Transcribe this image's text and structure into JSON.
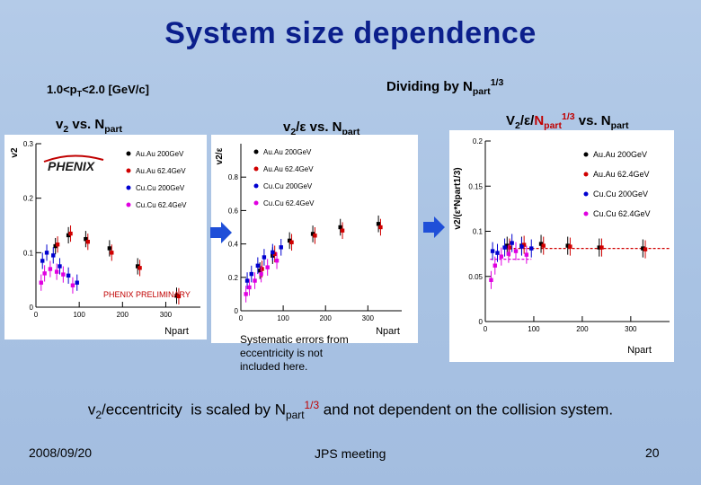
{
  "slide": {
    "title": "System size dependence",
    "pt_range": "1.0<pT<2.0 [GeV/c]",
    "dividing_label": "Dividing by Npart1/3",
    "bottom_statement": "v2/eccentricity  is scaled by Npart1/3 and not dependent on the collision system.",
    "footer_date": "2008/09/20",
    "footer_meeting": "JPS meeting",
    "footer_page": "20",
    "systematic_note_1": "Systematic errors from",
    "systematic_note_2": "eccentricity is not",
    "systematic_note_3": "included here."
  },
  "panel_titles": {
    "p1_a": "v",
    "p1_b": "2",
    "p1_c": " vs. N",
    "p1_d": "part",
    "p2_a": "v",
    "p2_b": "2",
    "p2_c": "/ε vs. N",
    "p2_d": "part",
    "p3_a": "V",
    "p3_b": "2",
    "p3_c": "/ε/",
    "p3_d": "N",
    "p3_e": "part",
    "p3_f": "1/3",
    "p3_g": " vs. N",
    "p3_h": "part"
  },
  "colors": {
    "auau200": "#000000",
    "auau62": "#d00000",
    "cucu200": "#0000d0",
    "cucu62": "#e000e0",
    "title": "#0b1f8c",
    "arrow": "#1f4fd8"
  },
  "chart_data": [
    {
      "type": "scatter",
      "ylabel": "v2",
      "xlabel": "Npart",
      "xlim": [
        0,
        380
      ],
      "ylim": [
        0,
        0.3
      ],
      "yticks": [
        "0",
        "0.1",
        "0.2",
        "0.3"
      ],
      "xticks": [
        "0",
        "100",
        "200",
        "300"
      ],
      "logo": "PHENIX",
      "annotation": "PHENIX PRELIMINARY",
      "legend": [
        "Au.Au 200GeV",
        "Au.Au 62.4GeV",
        "Cu.Cu 200GeV",
        "Cu.Cu 62.4GeV"
      ],
      "series": [
        {
          "name": "Au.Au 200GeV",
          "x": [
            45,
            75,
            115,
            170,
            235,
            325
          ],
          "y": [
            0.112,
            0.132,
            0.125,
            0.108,
            0.075,
            0.021
          ]
        },
        {
          "name": "Au.Au 62.4GeV",
          "x": [
            50,
            80,
            120,
            175,
            240,
            330
          ],
          "y": [
            0.115,
            0.135,
            0.12,
            0.1,
            0.072,
            0.02
          ]
        },
        {
          "name": "Cu.Cu 200GeV",
          "x": [
            15,
            25,
            40,
            55,
            75,
            95
          ],
          "y": [
            0.085,
            0.1,
            0.095,
            0.075,
            0.058,
            0.045
          ]
        },
        {
          "name": "Cu.Cu 62.4GeV",
          "x": [
            12,
            20,
            33,
            48,
            63,
            85
          ],
          "y": [
            0.045,
            0.062,
            0.07,
            0.065,
            0.06,
            0.04
          ]
        }
      ]
    },
    {
      "type": "scatter",
      "ylabel": "v2/ε",
      "xlabel": "Npart",
      "xlim": [
        0,
        380
      ],
      "ylim": [
        0,
        1.0
      ],
      "yticks": [
        "0",
        "0.2",
        "0.4",
        "0.6",
        "0.8"
      ],
      "xticks": [
        "0",
        "100",
        "200",
        "300"
      ],
      "legend": [
        "Au.Au 200GeV",
        "Au.Au 62.4GeV",
        "Cu.Cu 200GeV",
        "Cu.Cu 62.4GeV"
      ],
      "series": [
        {
          "name": "Au.Au 200GeV",
          "x": [
            45,
            75,
            115,
            170,
            235,
            325
          ],
          "y": [
            0.24,
            0.33,
            0.42,
            0.46,
            0.5,
            0.52
          ]
        },
        {
          "name": "Au.Au 62.4GeV",
          "x": [
            50,
            80,
            120,
            175,
            240,
            330
          ],
          "y": [
            0.25,
            0.34,
            0.41,
            0.45,
            0.48,
            0.5
          ]
        },
        {
          "name": "Cu.Cu 200GeV",
          "x": [
            15,
            25,
            40,
            55,
            75,
            95
          ],
          "y": [
            0.18,
            0.22,
            0.27,
            0.32,
            0.35,
            0.38
          ]
        },
        {
          "name": "Cu.Cu 62.4GeV",
          "x": [
            12,
            20,
            33,
            48,
            63,
            85
          ],
          "y": [
            0.1,
            0.14,
            0.18,
            0.22,
            0.26,
            0.3
          ]
        }
      ]
    },
    {
      "type": "scatter",
      "ylabel": "v2/(ε*Npart1/3)",
      "xlabel": "Npart",
      "xlim": [
        0,
        380
      ],
      "ylim": [
        0,
        0.2
      ],
      "yticks": [
        "0",
        "0.05",
        "0.1",
        "0.15",
        "0.2"
      ],
      "xticks": [
        "0",
        "100",
        "200",
        "300"
      ],
      "legend": [
        "Au.Au 200GeV",
        "Au.Au 62.4GeV",
        "Cu.Cu 200GeV",
        "Cu.Cu 62.4GeV"
      ],
      "series": [
        {
          "name": "Au.Au 200GeV",
          "x": [
            45,
            75,
            115,
            170,
            235,
            325
          ],
          "y": [
            0.084,
            0.084,
            0.086,
            0.084,
            0.082,
            0.081
          ]
        },
        {
          "name": "Au.Au 62.4GeV",
          "x": [
            50,
            80,
            120,
            175,
            240,
            330
          ],
          "y": [
            0.082,
            0.085,
            0.084,
            0.083,
            0.082,
            0.08
          ]
        },
        {
          "name": "Cu.Cu 200GeV",
          "x": [
            15,
            25,
            40,
            55,
            75,
            95
          ],
          "y": [
            0.078,
            0.076,
            0.082,
            0.087,
            0.083,
            0.081
          ]
        },
        {
          "name": "Cu.Cu 62.4GeV",
          "x": [
            12,
            20,
            33,
            48,
            63,
            85
          ],
          "y": [
            0.046,
            0.062,
            0.072,
            0.075,
            0.078,
            0.074
          ]
        }
      ]
    }
  ]
}
